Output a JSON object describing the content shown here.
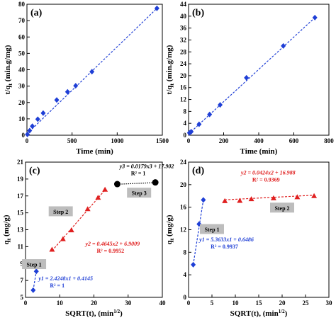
{
  "chart_data": [
    {
      "id": "a",
      "type": "line",
      "panel_label": "(a)",
      "xlabel": "Time (min)",
      "ylabel_main": "t/q",
      "ylabel_sub": "t",
      "ylabel_rest": " (min.g/mg)",
      "xlim": [
        0,
        1500
      ],
      "ylim": [
        0,
        80
      ],
      "xticks": [
        0,
        500,
        1000,
        1500
      ],
      "yticks": [
        0,
        10,
        20,
        30,
        40,
        50,
        60,
        70,
        80
      ],
      "series": [
        {
          "color": "#1f3fd6",
          "marker": "diamond",
          "x": [
            5,
            30,
            60,
            120,
            180,
            330,
            450,
            540,
            720,
            1440
          ],
          "y": [
            0.5,
            2.8,
            5.5,
            9.8,
            13.5,
            21.5,
            26.5,
            30.2,
            38.8,
            77.5
          ]
        }
      ],
      "fit": [
        {
          "x": [
            0,
            1440
          ],
          "y": [
            0.8,
            77.5
          ],
          "color": "#1f3fd6"
        }
      ],
      "annotations": [],
      "steps": []
    },
    {
      "id": "b",
      "type": "line",
      "panel_label": "(b)",
      "xlabel": "Time (min)",
      "ylabel_main": "t/q",
      "ylabel_sub": "t",
      "ylabel_rest": " (min.g/mg)",
      "xlim": [
        0,
        800
      ],
      "ylim": [
        0,
        44
      ],
      "xticks": [
        0,
        200,
        400,
        600,
        800
      ],
      "yticks": [
        0,
        4,
        8,
        12,
        16,
        20,
        24,
        28,
        32,
        36,
        40,
        44
      ],
      "series": [
        {
          "color": "#1f3fd6",
          "marker": "diamond",
          "x": [
            5,
            15,
            60,
            120,
            180,
            330,
            540,
            720
          ],
          "y": [
            0.8,
            1.2,
            3.7,
            7.0,
            10.2,
            19.3,
            30.0,
            39.5
          ]
        }
      ],
      "fit": [
        {
          "x": [
            0,
            720
          ],
          "y": [
            0.4,
            39.5
          ],
          "color": "#1f3fd6"
        }
      ],
      "annotations": [],
      "steps": []
    },
    {
      "id": "c",
      "type": "scatter",
      "panel_label": "(c)",
      "xlabel_main": "SQRT(t), (min",
      "xlabel_sup": "1/2",
      "xlabel_rest": ")",
      "ylabel_main": "q",
      "ylabel_sub": "t",
      "ylabel_rest": " (mg/g)",
      "xlim": [
        0,
        40
      ],
      "ylim": [
        5,
        21
      ],
      "xticks": [
        0,
        10,
        20,
        30,
        40
      ],
      "yticks": [
        5,
        7,
        9,
        11,
        13,
        15,
        17,
        19,
        21
      ],
      "series": [
        {
          "color": "#1f3fd6",
          "marker": "diamond",
          "x": [
            2.24,
            3.16
          ],
          "y": [
            5.85,
            8.08
          ]
        },
        {
          "color": "#e02020",
          "marker": "triangle",
          "x": [
            7.75,
            10.95,
            13.42,
            18.17,
            21.21,
            23.24
          ],
          "y": [
            10.65,
            11.9,
            12.95,
            15.45,
            16.8,
            17.75
          ]
        },
        {
          "color": "#000000",
          "marker": "circle",
          "x": [
            26.83,
            37.95
          ],
          "y": [
            18.4,
            18.6
          ]
        }
      ],
      "fit": [
        {
          "x": [
            2.24,
            3.16
          ],
          "y": [
            5.85,
            8.08
          ],
          "color": "#1f3fd6"
        },
        {
          "x": [
            7.75,
            23.24
          ],
          "y": [
            10.51,
            17.7
          ],
          "color": "#e02020"
        },
        {
          "x": [
            26.83,
            37.95
          ],
          "y": [
            18.38,
            18.58
          ],
          "color": "#000000"
        }
      ],
      "annotations": [
        {
          "name": "step3-equation",
          "color": "#000000",
          "eq": "y3 = 0.0179x3 + 17.902",
          "r2": "R² = 1",
          "ax": 27.5,
          "ay": 20.3
        },
        {
          "name": "step2-equation",
          "color": "#e02020",
          "eq": "y2 = 0.4645x2 + 6.9009",
          "r2": "R² = 0.9952",
          "ax": 17.5,
          "ay": 11.1
        },
        {
          "name": "step1-equation",
          "color": "#1f3fd6",
          "eq": "y1 = 2.4248x1 + 0.4145",
          "r2": "R² = 1",
          "ax": 3.8,
          "ay": 7.0
        }
      ],
      "steps": [
        {
          "label": "Step 3",
          "ax": 33.2,
          "ay": 17.3
        },
        {
          "label": "Step 2",
          "ax": 10.3,
          "ay": 15.1
        },
        {
          "label": "Step 1",
          "ax": 2.5,
          "ay": 8.85
        }
      ]
    },
    {
      "id": "d",
      "type": "scatter",
      "panel_label": "(d)",
      "xlabel_main": "SQRT(t), (min",
      "xlabel_sup": "1/2",
      "xlabel_rest": ")",
      "ylabel_main": "q",
      "ylabel_sub": "t",
      "ylabel_rest": " (mg/g)",
      "xlim": [
        0,
        30
      ],
      "ylim": [
        0,
        24
      ],
      "xticks": [
        0,
        5,
        10,
        15,
        20,
        25,
        30
      ],
      "yticks": [
        0,
        4,
        8,
        12,
        16,
        20,
        24
      ],
      "series": [
        {
          "color": "#1f3fd6",
          "marker": "diamond",
          "x": [
            1.0,
            2.24,
            3.16
          ],
          "y": [
            5.8,
            13.0,
            17.3
          ]
        },
        {
          "color": "#e02020",
          "marker": "triangle",
          "x": [
            7.75,
            10.95,
            13.42,
            18.17,
            23.24,
            26.83
          ],
          "y": [
            17.1,
            17.15,
            17.45,
            17.6,
            17.8,
            18.0
          ]
        }
      ],
      "fit": [
        {
          "x": [
            1.0,
            3.16
          ],
          "y": [
            5.8,
            17.3
          ],
          "color": "#1f3fd6"
        },
        {
          "x": [
            7.75,
            26.83
          ],
          "y": [
            17.31,
            18.13
          ],
          "color": "#e02020"
        }
      ],
      "annotations": [
        {
          "name": "step2-equation",
          "color": "#e02020",
          "eq": "y2 = 0.0424x2 + 16.988",
          "r2": "R² = 0.9369",
          "ax": 11.2,
          "ay": 21.8
        },
        {
          "name": "step1-equation",
          "color": "#1f3fd6",
          "eq": "y1 = 5.3633x1 + 0.6486",
          "r2": "R² = 0.9937",
          "ax": 2.3,
          "ay": 9.9
        }
      ],
      "steps": [
        {
          "label": "Step 1",
          "ax": 5.0,
          "ay": 12.0
        },
        {
          "label": "Step 2",
          "ax": 20.0,
          "ay": 15.8
        }
      ]
    }
  ]
}
